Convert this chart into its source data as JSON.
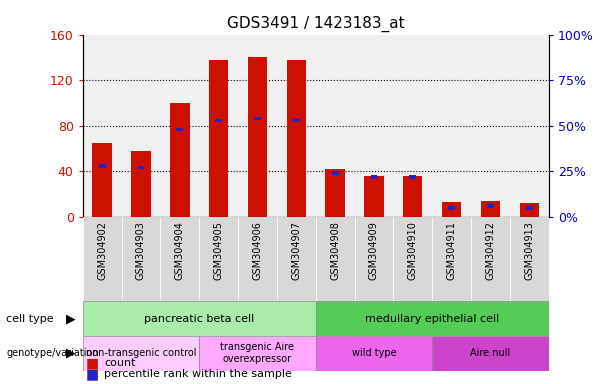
{
  "title": "GDS3491 / 1423183_at",
  "samples": [
    "GSM304902",
    "GSM304903",
    "GSM304904",
    "GSM304905",
    "GSM304906",
    "GSM304907",
    "GSM304908",
    "GSM304909",
    "GSM304910",
    "GSM304911",
    "GSM304912",
    "GSM304913"
  ],
  "counts": [
    65,
    58,
    100,
    138,
    140,
    138,
    42,
    36,
    36,
    13,
    14,
    12
  ],
  "percentile_ranks": [
    28,
    27,
    48,
    53,
    54,
    53,
    24,
    22,
    22,
    5,
    6,
    5
  ],
  "ylim_left": [
    0,
    160
  ],
  "ylim_right": [
    0,
    100
  ],
  "yticks_left": [
    0,
    40,
    80,
    120,
    160
  ],
  "yticks_right": [
    0,
    25,
    50,
    75,
    100
  ],
  "ytick_labels_left": [
    "0",
    "40",
    "80",
    "120",
    "160"
  ],
  "ytick_labels_right": [
    "0%",
    "25%",
    "50%",
    "75%",
    "100%"
  ],
  "bar_color": "#cc1100",
  "rank_color": "#2222cc",
  "cell_type_groups": [
    {
      "label": "pancreatic beta cell",
      "start": 0,
      "end": 6,
      "color": "#aaeaaa"
    },
    {
      "label": "medullary epithelial cell",
      "start": 6,
      "end": 12,
      "color": "#55cc55"
    }
  ],
  "genotype_groups": [
    {
      "label": "non-transgenic control",
      "start": 0,
      "end": 3,
      "color": "#ffccff"
    },
    {
      "label": "transgenic Aire\noverexpressor",
      "start": 3,
      "end": 6,
      "color": "#ffaaff"
    },
    {
      "label": "wild type",
      "start": 6,
      "end": 9,
      "color": "#ee66ee"
    },
    {
      "label": "Aire null",
      "start": 9,
      "end": 12,
      "color": "#cc44cc"
    }
  ],
  "legend_count_color": "#cc1100",
  "legend_rank_color": "#2222cc",
  "background_color": "#ffffff",
  "plot_bg_color": "#f0f0f0",
  "tick_bg_color": "#d8d8d8"
}
